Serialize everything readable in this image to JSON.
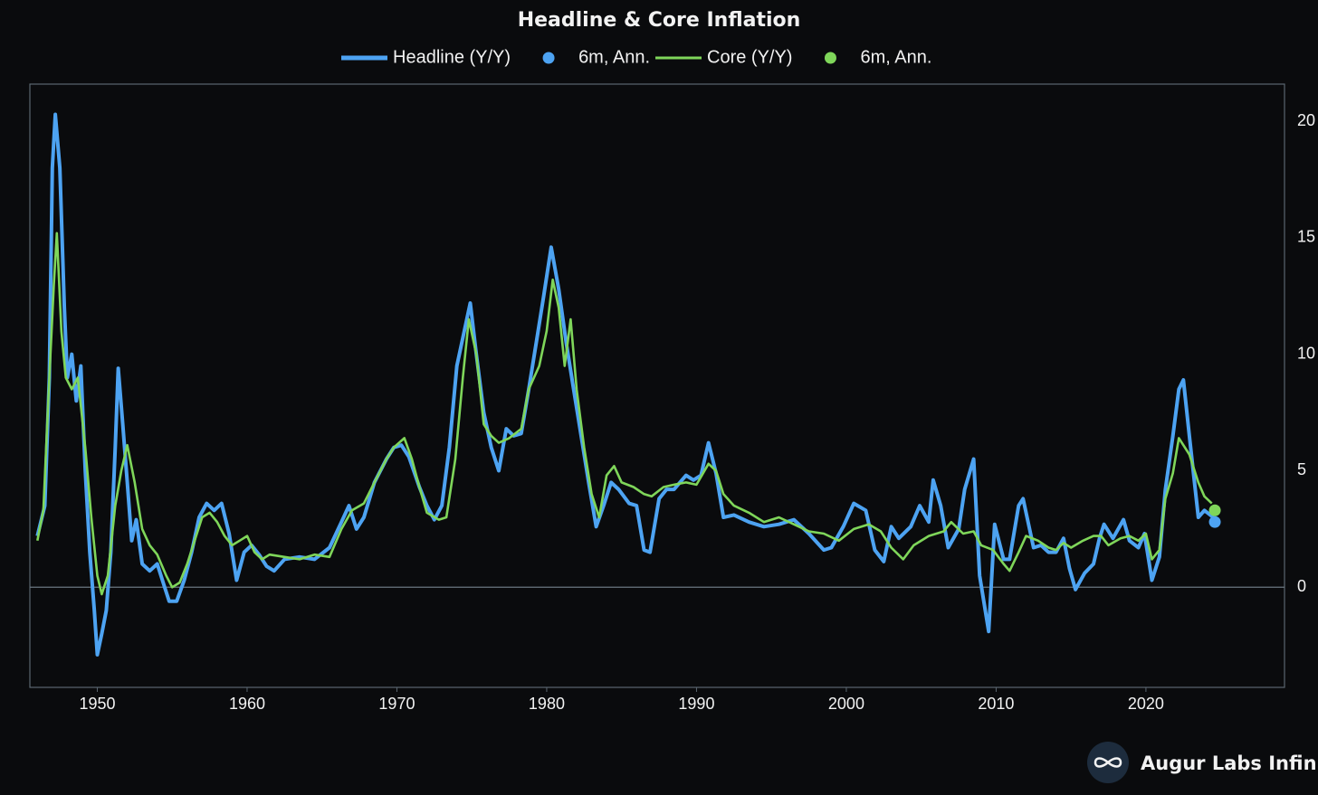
{
  "chart_data": {
    "type": "line",
    "title": "Headline & Core Inflation",
    "watermark": "Augur Labs Infinity",
    "xlim": [
      1945.5,
      2029.25
    ],
    "xticks": [
      1950,
      1960,
      1970,
      1980,
      1990,
      2000,
      2010,
      2020
    ],
    "ylim": [
      -4.3,
      21.6
    ],
    "yticks": [
      0,
      5,
      10,
      15,
      20
    ],
    "y_axis_side": "right",
    "zero_line": true,
    "grid": false,
    "legend": "top",
    "series": [
      {
        "name": "Headline (Y/Y)",
        "style": "line",
        "color": "#4da3f2",
        "x": [
          1946.0,
          1946.5,
          1946.8,
          1947.0,
          1947.2,
          1947.5,
          1947.8,
          1948.0,
          1948.3,
          1948.6,
          1948.9,
          1949.2,
          1949.5,
          1949.8,
          1950.0,
          1950.3,
          1950.6,
          1950.9,
          1951.2,
          1951.4,
          1951.7,
          1952.0,
          1952.3,
          1952.6,
          1953.0,
          1953.5,
          1954.0,
          1954.5,
          1954.8,
          1955.3,
          1955.8,
          1956.3,
          1956.8,
          1957.3,
          1957.8,
          1958.3,
          1958.8,
          1959.3,
          1959.8,
          1960.3,
          1960.8,
          1961.3,
          1961.8,
          1962.5,
          1963.5,
          1964.5,
          1965.5,
          1966.3,
          1966.8,
          1967.3,
          1967.8,
          1968.5,
          1969.3,
          1969.8,
          1970.3,
          1970.8,
          1971.5,
          1972.0,
          1972.5,
          1973.0,
          1973.5,
          1974.0,
          1974.5,
          1974.9,
          1975.3,
          1975.8,
          1976.3,
          1976.8,
          1977.3,
          1977.8,
          1978.3,
          1978.8,
          1979.3,
          1979.8,
          1980.3,
          1980.8,
          1981.3,
          1981.8,
          1982.3,
          1982.8,
          1983.3,
          1983.8,
          1984.3,
          1984.8,
          1985.5,
          1986.0,
          1986.5,
          1986.9,
          1987.5,
          1988.0,
          1988.5,
          1989.3,
          1989.8,
          1990.3,
          1990.8,
          1991.3,
          1991.8,
          1992.5,
          1993.5,
          1994.5,
          1995.5,
          1996.5,
          1997.5,
          1998.5,
          1999.0,
          1999.8,
          2000.5,
          2001.3,
          2001.9,
          2002.5,
          2003.0,
          2003.5,
          2004.3,
          2004.9,
          2005.5,
          2005.8,
          2006.3,
          2006.8,
          2007.5,
          2007.9,
          2008.5,
          2008.9,
          2009.5,
          2009.9,
          2010.5,
          2010.9,
          2011.5,
          2011.8,
          2012.5,
          2013.0,
          2013.5,
          2014.0,
          2014.5,
          2014.9,
          2015.3,
          2015.9,
          2016.5,
          2016.9,
          2017.2,
          2017.8,
          2018.5,
          2018.9,
          2019.5,
          2019.9,
          2020.4,
          2020.9,
          2021.3,
          2021.8,
          2022.2,
          2022.5,
          2022.9,
          2023.5,
          2023.9,
          2024.5
        ],
        "values": [
          2.2,
          3.5,
          9,
          18,
          20.3,
          18,
          12,
          9,
          10,
          8,
          9.5,
          5,
          1.5,
          -1,
          -2.9,
          -2,
          -1,
          1.5,
          6,
          9.4,
          7,
          4.5,
          2,
          2.9,
          1,
          0.7,
          1,
          0,
          -0.6,
          -0.6,
          0.3,
          1.5,
          3,
          3.6,
          3.3,
          3.6,
          2.3,
          0.3,
          1.5,
          1.8,
          1.4,
          0.9,
          0.7,
          1.2,
          1.3,
          1.2,
          1.7,
          2.8,
          3.5,
          2.5,
          3.0,
          4.5,
          5.5,
          6.0,
          6.1,
          5.6,
          4.3,
          3.5,
          2.9,
          3.5,
          6,
          9.5,
          11,
          12.2,
          10,
          7.5,
          6,
          5,
          6.8,
          6.5,
          6.6,
          8.5,
          10.5,
          12.5,
          14.6,
          12.8,
          10.5,
          8.5,
          6.5,
          4.5,
          2.6,
          3.5,
          4.5,
          4.2,
          3.6,
          3.5,
          1.6,
          1.5,
          3.8,
          4.2,
          4.2,
          4.8,
          4.6,
          4.8,
          6.2,
          4.9,
          3.0,
          3.1,
          2.8,
          2.6,
          2.7,
          2.9,
          2.3,
          1.6,
          1.7,
          2.6,
          3.6,
          3.3,
          1.6,
          1.1,
          2.6,
          2.1,
          2.6,
          3.5,
          2.8,
          4.6,
          3.5,
          1.7,
          2.5,
          4.2,
          5.5,
          0.5,
          -1.9,
          2.7,
          1.2,
          1.2,
          3.5,
          3.8,
          1.7,
          1.8,
          1.5,
          1.5,
          2.1,
          0.8,
          -0.1,
          0.6,
          1.0,
          2.1,
          2.7,
          2.1,
          2.9,
          2.0,
          1.7,
          2.3,
          0.3,
          1.3,
          4.2,
          6.5,
          8.5,
          8.9,
          6.5,
          3.0,
          3.3,
          3.0
        ]
      },
      {
        "name": "6m, Ann.",
        "style": "dot",
        "color": "#4da3f2",
        "x": [
          2024.6
        ],
        "values": [
          2.8
        ]
      },
      {
        "name": "Core (Y/Y)",
        "style": "line",
        "color": "#7fd65a",
        "x": [
          1946.0,
          1946.4,
          1946.8,
          1947.1,
          1947.3,
          1947.6,
          1947.9,
          1948.3,
          1948.7,
          1949.2,
          1949.6,
          1950.0,
          1950.3,
          1950.7,
          1951.2,
          1951.6,
          1952.0,
          1952.5,
          1953.0,
          1953.5,
          1954.0,
          1954.6,
          1955.0,
          1955.5,
          1956.0,
          1956.5,
          1957.0,
          1957.5,
          1958.0,
          1958.5,
          1959.0,
          1959.5,
          1960.0,
          1960.5,
          1961.0,
          1961.5,
          1962.5,
          1963.5,
          1964.5,
          1965.5,
          1966.3,
          1967.0,
          1967.8,
          1968.5,
          1969.3,
          1969.8,
          1970.5,
          1971.0,
          1971.5,
          1972.0,
          1972.8,
          1973.3,
          1973.9,
          1974.4,
          1974.8,
          1975.3,
          1975.8,
          1976.3,
          1976.8,
          1977.5,
          1978.3,
          1978.8,
          1979.5,
          1980.0,
          1980.4,
          1980.8,
          1981.2,
          1981.6,
          1982.0,
          1982.5,
          1983.0,
          1983.5,
          1984.0,
          1984.5,
          1985.0,
          1985.8,
          1986.5,
          1987.0,
          1987.8,
          1988.5,
          1989.3,
          1990.0,
          1990.8,
          1991.3,
          1991.8,
          1992.5,
          1993.5,
          1994.5,
          1995.5,
          1996.5,
          1997.5,
          1998.5,
          1999.5,
          2000.5,
          2001.5,
          2002.3,
          2003.0,
          2003.8,
          2004.5,
          2005.5,
          2006.5,
          2007.0,
          2007.8,
          2008.5,
          2009.0,
          2009.8,
          2010.5,
          2010.9,
          2011.5,
          2012.0,
          2012.8,
          2013.5,
          2014.0,
          2014.5,
          2015.0,
          2015.8,
          2016.5,
          2017.0,
          2017.5,
          2018.3,
          2018.9,
          2019.5,
          2020.0,
          2020.4,
          2020.9,
          2021.3,
          2021.8,
          2022.2,
          2022.5,
          2022.9,
          2023.5,
          2023.9,
          2024.4
        ],
        "values": [
          2.0,
          3.3,
          9,
          13,
          15.2,
          11,
          9,
          8.5,
          9,
          6,
          3,
          0.5,
          -0.3,
          0.5,
          3.5,
          5,
          6.1,
          4.5,
          2.5,
          1.8,
          1.4,
          0.5,
          0,
          0.2,
          1,
          2,
          3,
          3.2,
          2.8,
          2.2,
          1.8,
          2.0,
          2.2,
          1.5,
          1.2,
          1.4,
          1.3,
          1.2,
          1.4,
          1.3,
          2.5,
          3.3,
          3.6,
          4.5,
          5.5,
          6.0,
          6.4,
          5.5,
          4.3,
          3.2,
          2.9,
          3.0,
          5.5,
          9,
          11.5,
          10,
          7,
          6.5,
          6.2,
          6.4,
          6.8,
          8.5,
          9.5,
          11,
          13.2,
          12,
          9.5,
          11.5,
          8.5,
          6.0,
          4.0,
          3.0,
          4.8,
          5.2,
          4.5,
          4.3,
          4.0,
          3.9,
          4.3,
          4.4,
          4.5,
          4.4,
          5.3,
          5.0,
          4.0,
          3.5,
          3.2,
          2.8,
          3.0,
          2.7,
          2.4,
          2.3,
          2.0,
          2.5,
          2.7,
          2.4,
          1.7,
          1.2,
          1.8,
          2.2,
          2.4,
          2.8,
          2.3,
          2.4,
          1.8,
          1.6,
          1.0,
          0.7,
          1.5,
          2.2,
          2.0,
          1.7,
          1.6,
          1.9,
          1.7,
          2.0,
          2.2,
          2.2,
          1.8,
          2.1,
          2.2,
          2.0,
          2.3,
          1.2,
          1.6,
          3.8,
          4.9,
          6.4,
          6.1,
          5.7,
          4.5,
          3.9,
          3.6
        ]
      },
      {
        "name": "6m, Ann.",
        "style": "dot",
        "color": "#7fd65a",
        "x": [
          2024.6
        ],
        "values": [
          3.3
        ]
      }
    ]
  }
}
